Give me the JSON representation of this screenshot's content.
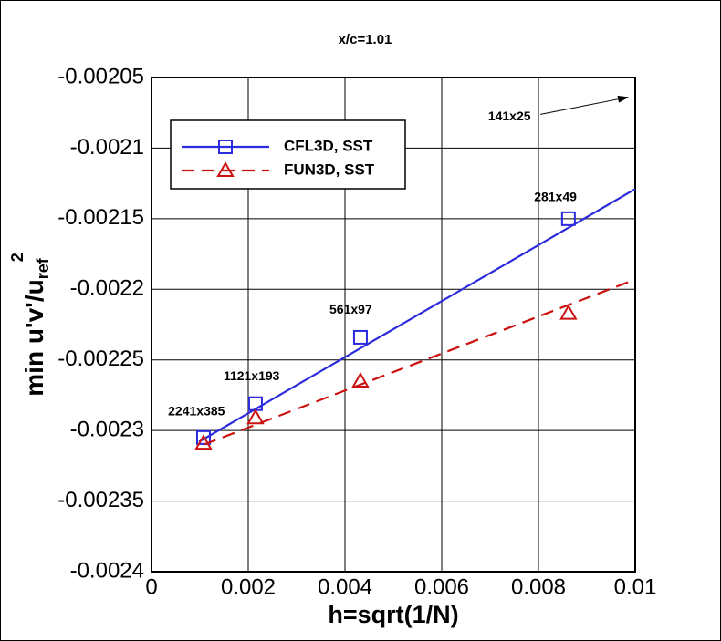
{
  "chart_data": {
    "type": "line",
    "title": "x/c=1.01",
    "x_label": "h=sqrt(1/N)",
    "y_label": {
      "main": "min u'v'/u",
      "sub": "ref",
      "sup": "2"
    },
    "xlim": [
      0,
      0.01
    ],
    "xticks": [
      0,
      0.002,
      0.004,
      0.006,
      0.008,
      0.01
    ],
    "ylim": [
      -0.0024,
      -0.00205
    ],
    "yticks": [
      -0.0024,
      -0.00235,
      -0.0023,
      -0.00225,
      -0.0022,
      -0.00215,
      -0.0021,
      -0.00205
    ],
    "grid": true,
    "legend": "upper left",
    "series": [
      {
        "name": "CFL3D, SST",
        "color": "#2b2bdd",
        "marker": "square",
        "dash": false,
        "x": [
          0.001075,
          0.00215,
          0.00432,
          0.00862
        ],
        "values": [
          -0.002305,
          -0.002281,
          -0.002234,
          -0.00215
        ],
        "fit": {
          "x": [
            0.00098,
            0.01
          ],
          "values": [
            -0.002308,
            -0.002129
          ]
        }
      },
      {
        "name": "FUN3D, SST",
        "color": "#cc1111",
        "marker": "triangle",
        "dash": true,
        "x": [
          0.001075,
          0.00215,
          0.00432,
          0.00862
        ],
        "values": [
          -0.002309,
          -0.002291,
          -0.002265,
          -0.002217
        ],
        "fit": {
          "x": [
            0.00108,
            0.00985
          ],
          "values": [
            -0.00231,
            -0.002195
          ]
        }
      }
    ],
    "annotations": [
      {
        "text": "141x25",
        "x": 0.0074,
        "y": -0.002078,
        "arrow_to": [
          0.00985,
          -0.002064
        ]
      },
      {
        "text": "281x49",
        "x": 0.00835,
        "y": -0.002135
      },
      {
        "text": "561x97",
        "x": 0.00412,
        "y": -0.002215
      },
      {
        "text": "1121x193",
        "x": 0.00207,
        "y": -0.002262
      },
      {
        "text": "2241x385",
        "x": 0.00093,
        "y": -0.002287
      }
    ]
  }
}
